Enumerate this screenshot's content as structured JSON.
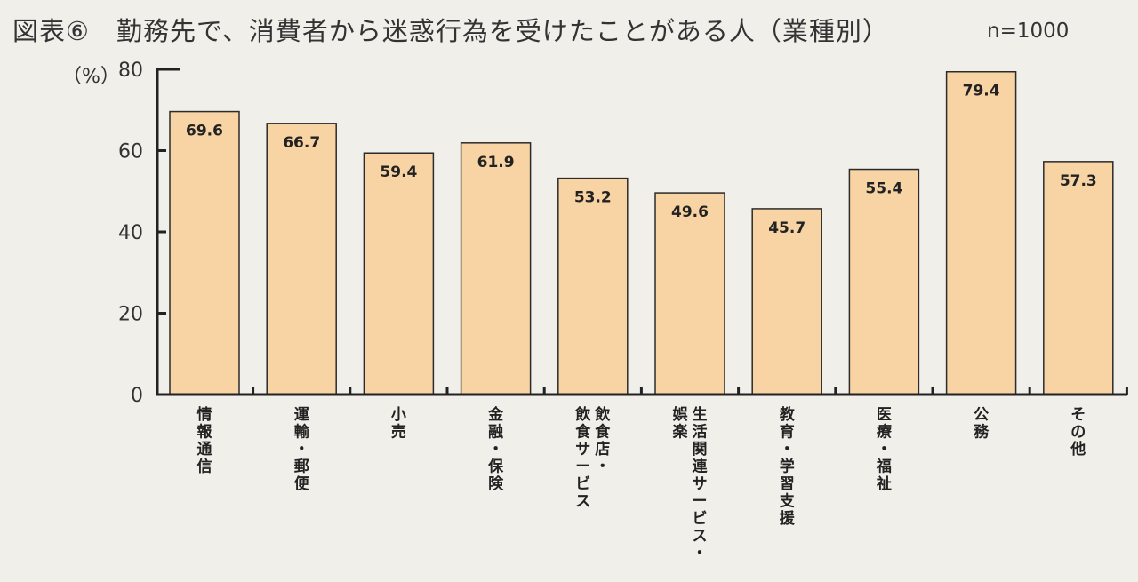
{
  "chart_data": {
    "type": "bar",
    "title": "図表⑥　勤務先で、消費者から迷惑行為を受けたことがある人（業種別）",
    "sample_size": "n=1000",
    "ylabel": "（%）",
    "xlabel": "",
    "ylim": [
      0,
      80
    ],
    "yticks": [
      0,
      20,
      40,
      60,
      80
    ],
    "grid": false,
    "categories": [
      "情報通信",
      "運輸・郵便",
      "小売",
      "金融・保険",
      "飲食店・飲食サービス",
      "生活関連サービス・娯楽",
      "教育・学習支援",
      "医療・福祉",
      "公務",
      "その他"
    ],
    "category_columns": [
      [
        "情報通信"
      ],
      [
        "運輸・郵便"
      ],
      [
        "小売"
      ],
      [
        "金融・保険"
      ],
      [
        "飲食店・",
        "飲食サービス"
      ],
      [
        "生活関連サービス・",
        "娯楽"
      ],
      [
        "教育・学習支援"
      ],
      [
        "医療・福祉"
      ],
      [
        "公務"
      ],
      [
        "その他"
      ]
    ],
    "values": [
      69.6,
      66.7,
      59.4,
      61.9,
      53.2,
      49.6,
      45.7,
      55.4,
      79.4,
      57.3
    ],
    "value_labels": [
      "69.6",
      "66.7",
      "59.4",
      "61.9",
      "53.2",
      "49.6",
      "45.7",
      "55.4",
      "79.4",
      "57.3"
    ],
    "bar_color": "#f8d3a3"
  }
}
